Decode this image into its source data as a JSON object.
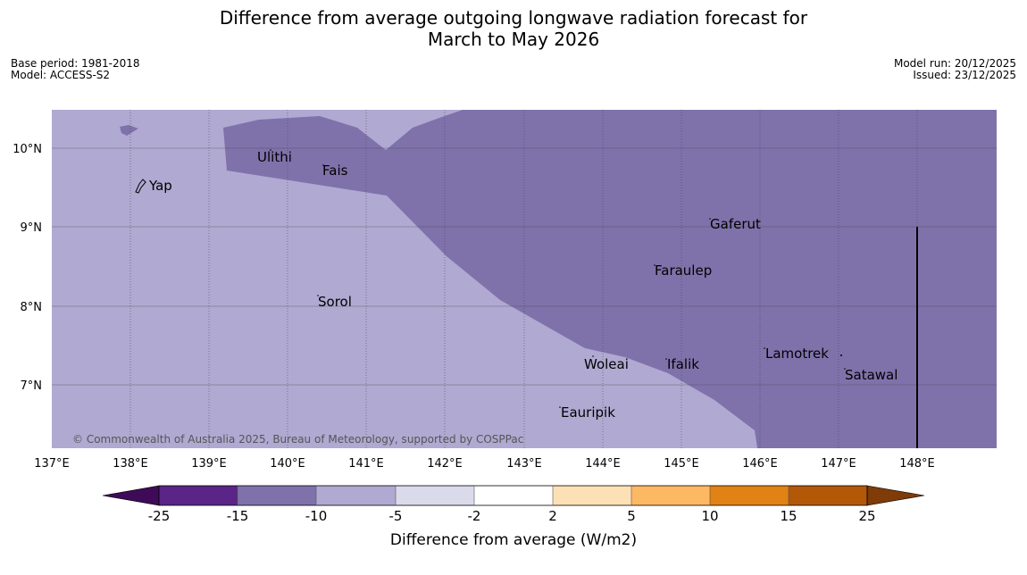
{
  "header": {
    "title_line1": "Difference from average outgoing longwave radiation forecast for",
    "title_line2": "March to May 2026",
    "base_period": "Base period: 1981-2018",
    "model": "Model: ACCESS-S2",
    "model_run": "Model run: 20/12/2025",
    "issued": "Issued: 23/12/2025"
  },
  "map": {
    "lon_labels": [
      "137°E",
      "138°E",
      "139°E",
      "140°E",
      "141°E",
      "142°E",
      "143°E",
      "144°E",
      "145°E",
      "146°E",
      "147°E",
      "148°E"
    ],
    "lat_labels": [
      "10°N",
      "9°N",
      "8°N",
      "7°N"
    ],
    "places": [
      {
        "name": "Yap"
      },
      {
        "name": "Ulithi"
      },
      {
        "name": "Fais"
      },
      {
        "name": "Gaferut"
      },
      {
        "name": "Faraulep"
      },
      {
        "name": "Sorol"
      },
      {
        "name": "Lamotrek"
      },
      {
        "name": "Woleai"
      },
      {
        "name": "Ifalik"
      },
      {
        "name": "Satawal"
      },
      {
        "name": "Eauripik"
      }
    ],
    "copyright": "© Commonwealth of Australia 2025, Bureau of Meteorology, supported by COSPPac",
    "colors": {
      "light_purple": "#b0a9d1",
      "mid_purple": "#7f72ab"
    }
  },
  "colorbar": {
    "title": "Difference from average (W/m2)",
    "ticks": [
      "-25",
      "-15",
      "-10",
      "-5",
      "-2",
      "2",
      "5",
      "10",
      "15",
      "25"
    ],
    "colors": [
      "#3f0a57",
      "#5a2586",
      "#7f72ab",
      "#b0a9d1",
      "#dadaeb",
      "#ffffff",
      "#fee0b6",
      "#fdb863",
      "#e08214",
      "#b35806",
      "#7f3b08"
    ]
  }
}
